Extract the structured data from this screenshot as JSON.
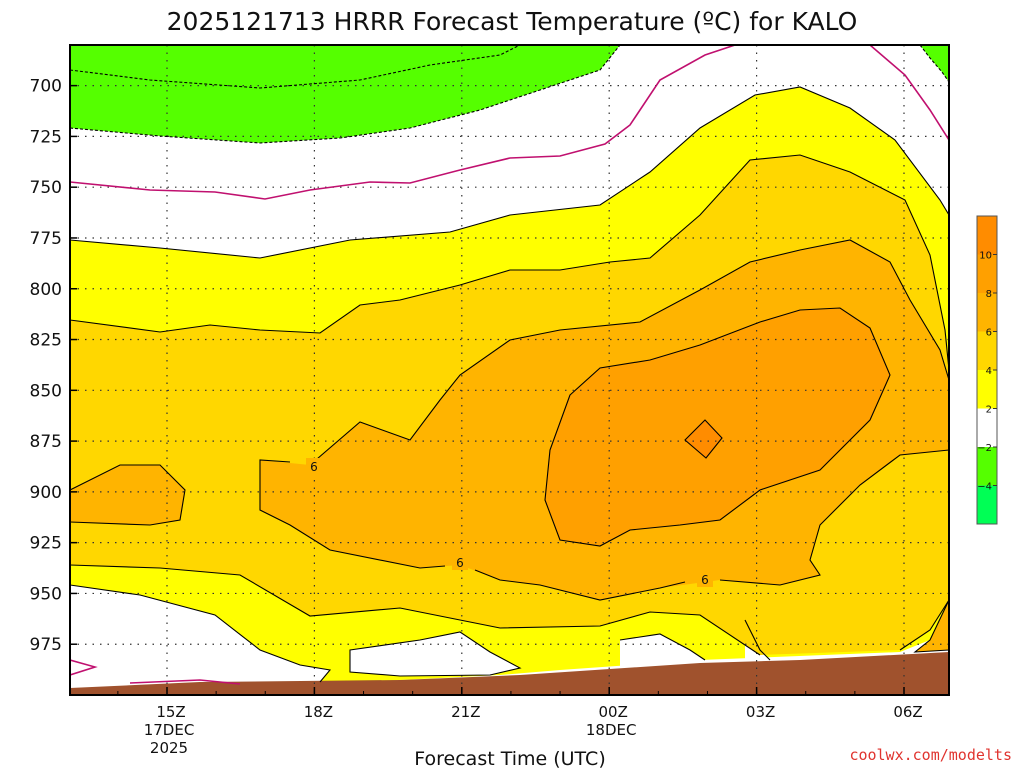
{
  "chart_data": {
    "type": "heatmap",
    "title": "2025121713 HRRR Forecast Temperature (ºC) for KALO",
    "xlabel": "Forecast Time (UTC)",
    "ylabel": "",
    "x_ticks": [
      {
        "label": "15Z",
        "sublabels": [
          "17DEC",
          "2025"
        ]
      },
      {
        "label": "18Z",
        "sublabels": []
      },
      {
        "label": "21Z",
        "sublabels": []
      },
      {
        "label": "00Z",
        "sublabels": [
          "18DEC"
        ]
      },
      {
        "label": "03Z",
        "sublabels": []
      },
      {
        "label": "06Z",
        "sublabels": []
      }
    ],
    "y_ticks": [
      "700",
      "725",
      "750",
      "775",
      "800",
      "825",
      "850",
      "875",
      "900",
      "925",
      "950",
      "975"
    ],
    "ylim": [
      1000,
      680
    ],
    "colorbar": {
      "labels": [
        "10",
        "8",
        "6",
        "4",
        "2",
        "−2",
        "−4"
      ],
      "colors": {
        "gt10": "#ff8c00",
        "8_10": "#ffa000",
        "6_8": "#ffb400",
        "4_6": "#ffd700",
        "2_4": "#ffff00",
        "m2_2": "#ffffff",
        "m4_m2": "#55ff00",
        "lt_m4": "#00ff55",
        "ground": "#a0522d",
        "zero_line": "#c0106f"
      }
    },
    "contour_labels": [
      "6",
      "6",
      "6"
    ],
    "grid": true,
    "credit": "coolwx.com/modelts"
  }
}
